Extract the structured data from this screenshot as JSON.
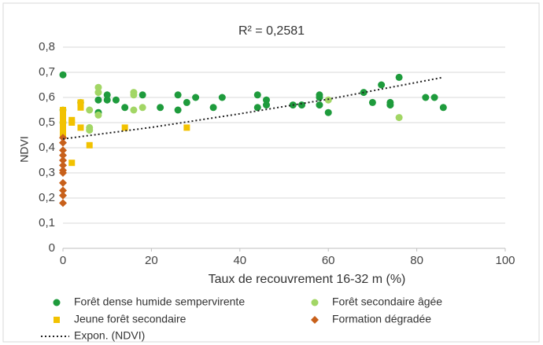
{
  "chart_data": {
    "type": "scatter",
    "title": "R² = 0,2581",
    "xlabel": "Taux de recouvrement 16-32 m (%)",
    "ylabel": "NDVI",
    "xlim": [
      0,
      100
    ],
    "xticks": [
      0,
      20,
      40,
      60,
      80,
      100
    ],
    "ylim": [
      0,
      0.8
    ],
    "yticks": [
      0,
      {
        "value": 0.1,
        "label": "0,1"
      },
      {
        "value": 0.2,
        "label": "0,2"
      },
      {
        "value": 0.3,
        "label": "0,3"
      },
      {
        "value": 0.4,
        "label": "0,4"
      },
      {
        "value": 0.5,
        "label": "0,5"
      },
      {
        "value": 0.6,
        "label": "0,6"
      },
      {
        "value": 0.7,
        "label": "0,7"
      },
      {
        "value": 0.8,
        "label": "0,8"
      }
    ],
    "grid": true,
    "legend": "bottom",
    "series": [
      {
        "name": "Forêt dense humide sempervirente",
        "color": "#1e9b3c",
        "marker": "circle",
        "x": [
          0,
          8,
          8,
          10,
          10,
          12,
          14,
          18,
          22,
          26,
          26,
          28,
          30,
          34,
          36,
          44,
          44,
          46,
          46,
          52,
          54,
          58,
          58,
          58,
          60,
          68,
          70,
          72,
          74,
          74,
          76,
          82,
          84,
          86
        ],
        "values": [
          0.69,
          0.59,
          0.54,
          0.61,
          0.59,
          0.59,
          0.56,
          0.61,
          0.56,
          0.61,
          0.55,
          0.58,
          0.6,
          0.56,
          0.6,
          0.61,
          0.56,
          0.59,
          0.57,
          0.57,
          0.57,
          0.61,
          0.6,
          0.57,
          0.54,
          0.62,
          0.58,
          0.65,
          0.58,
          0.57,
          0.68,
          0.6,
          0.6,
          0.56
        ]
      },
      {
        "name": "Forêt secondaire âgée",
        "color": "#a2d665",
        "marker": "circle",
        "x": [
          0,
          0,
          4,
          6,
          6,
          6,
          8,
          8,
          8,
          16,
          16,
          16,
          18,
          60,
          76
        ],
        "values": [
          0.55,
          0.5,
          0.58,
          0.55,
          0.48,
          0.47,
          0.64,
          0.62,
          0.53,
          0.62,
          0.61,
          0.55,
          0.56,
          0.59,
          0.52
        ]
      },
      {
        "name": "Jeune forêt secondaire",
        "color": "#f2c200",
        "marker": "square",
        "x": [
          0,
          0,
          0,
          0,
          0,
          0,
          2,
          2,
          2,
          4,
          4,
          4,
          6,
          14,
          28
        ],
        "values": [
          0.55,
          0.53,
          0.51,
          0.49,
          0.47,
          0.45,
          0.51,
          0.5,
          0.34,
          0.58,
          0.56,
          0.48,
          0.41,
          0.48,
          0.48
        ]
      },
      {
        "name": "Formation dégradée",
        "color": "#c8601a",
        "marker": "diamond",
        "x": [
          0,
          0,
          0,
          0,
          0,
          0,
          0,
          0,
          0,
          0,
          0,
          0
        ],
        "values": [
          0.44,
          0.42,
          0.39,
          0.37,
          0.35,
          0.33,
          0.31,
          0.3,
          0.26,
          0.23,
          0.21,
          0.18
        ]
      }
    ],
    "trendline": {
      "name": "Expon. (NDVI)",
      "color": "#222222",
      "x": [
        0,
        20,
        40,
        60,
        86
      ],
      "values": [
        0.435,
        0.481,
        0.535,
        0.593,
        0.68
      ]
    }
  }
}
